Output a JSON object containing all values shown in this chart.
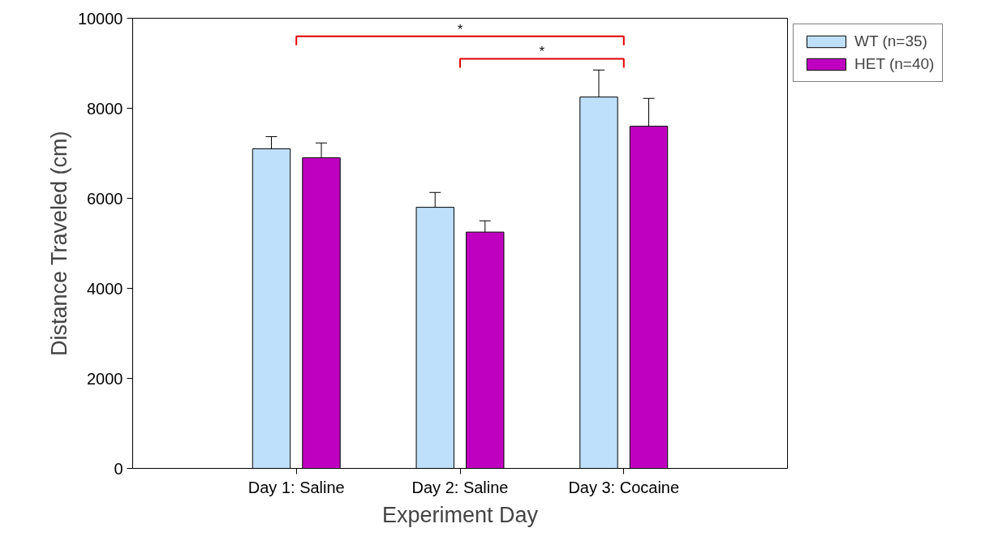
{
  "chart_data": {
    "type": "bar",
    "xlabel": "Experiment Day",
    "ylabel": "Distance Traveled (cm)",
    "categories": [
      "Day 1: Saline",
      "Day 2: Saline",
      "Day 3: Cocaine"
    ],
    "series": [
      {
        "name": "WT (n=35)",
        "color": "#bfe0fb",
        "values": [
          7100,
          5800,
          8250
        ],
        "errors": [
          270,
          330,
          600
        ]
      },
      {
        "name": "HET (n=40)",
        "color": "#c000c0",
        "values": [
          6900,
          5250,
          7600
        ],
        "errors": [
          330,
          250,
          620
        ]
      }
    ],
    "ylim": [
      0,
      10000
    ],
    "yticks": [
      0,
      2000,
      4000,
      6000,
      8000,
      10000
    ],
    "annotations": [
      "*",
      "*"
    ],
    "grid": false,
    "legend": "top right"
  }
}
